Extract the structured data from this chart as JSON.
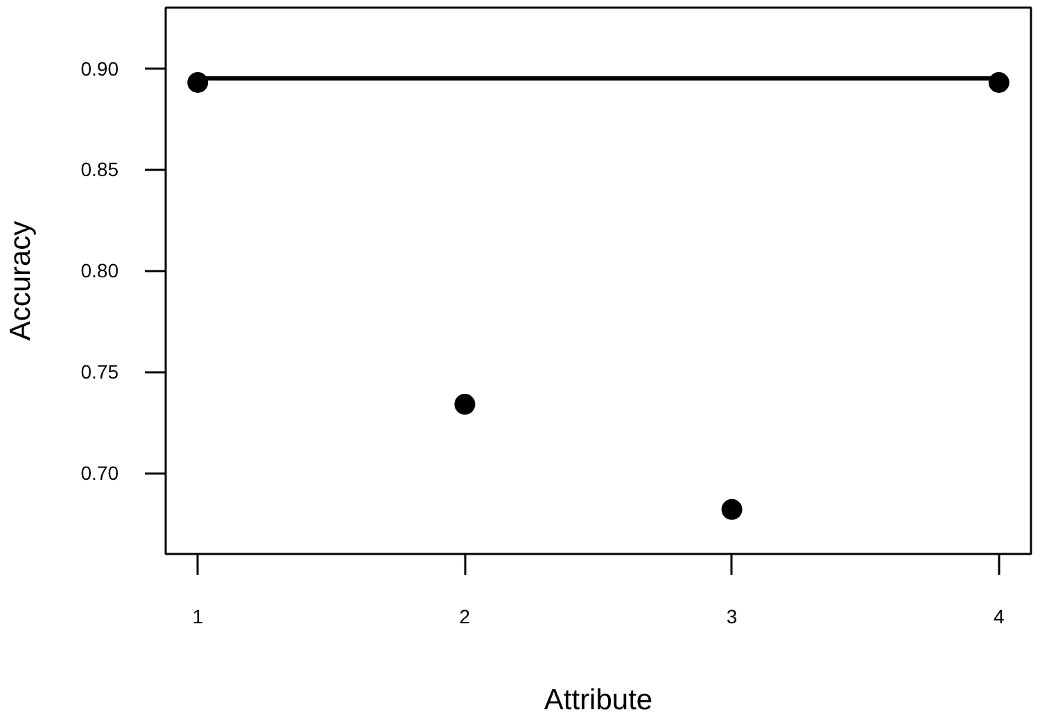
{
  "chart_data": {
    "type": "scatter",
    "xlabel": "Attribute",
    "ylabel": "Accuracy",
    "x": [
      1,
      2,
      3,
      4
    ],
    "series": [
      {
        "type": "line",
        "x": [
          1,
          4
        ],
        "values": [
          0.895,
          0.895
        ],
        "color": "#000000",
        "marker": "none",
        "line_style": "solid"
      },
      {
        "values": [
          0.893,
          0.734,
          0.682,
          0.893
        ],
        "color": "#000000"
      }
    ],
    "marker": "circle",
    "xlim": [
      0.88,
      4.12
    ],
    "ylim": [
      0.66,
      0.93
    ],
    "xticks": [
      1,
      2,
      3,
      4
    ],
    "yticks": [
      {
        "value": 0.7,
        "label": "0.70"
      },
      {
        "value": 0.75,
        "label": "0.75"
      },
      {
        "value": 0.8,
        "label": "0.80"
      },
      {
        "value": 0.85,
        "label": "0.85"
      },
      {
        "value": 0.9,
        "label": "0.90"
      }
    ],
    "grid": false
  }
}
